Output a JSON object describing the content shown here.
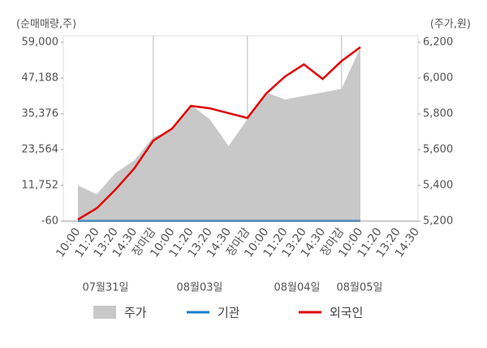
{
  "chart_data": {
    "type": "combo",
    "y_axis_title": "(순매매량,주)",
    "y2_axis_title": "(주가,원)",
    "categories": [
      "10:00",
      "11:20",
      "13:20",
      "14:30",
      "장마감",
      "10:00",
      "11:20",
      "13:20",
      "14:30",
      "장마감",
      "10:00",
      "11:20",
      "13:20",
      "14:30",
      "장마감",
      "10:00",
      "11:20",
      "13:20",
      "14:30"
    ],
    "category_colors": [
      "#555",
      "#555",
      "#555",
      "#555",
      "#e00000",
      "#555",
      "#555",
      "#555",
      "#555",
      "#e00000",
      "#555",
      "#555",
      "#555",
      "#555",
      "#e00000",
      "#555",
      "#555",
      "#555",
      "#555"
    ],
    "date_labels": [
      "07월31일",
      "08월03일",
      "08월04일",
      "08월05일"
    ],
    "series": [
      {
        "name": "주가",
        "type": "area",
        "axis": "y2",
        "color": "#c8c8c8",
        "values": [
          5400,
          5350,
          5470,
          5540,
          5670,
          5710,
          5850,
          5770,
          5620,
          5770,
          5920,
          5880,
          5900,
          5920,
          5940,
          6170,
          null,
          null,
          null
        ]
      },
      {
        "name": "기관",
        "type": "line",
        "color": "#1a7fd0",
        "values": [
          0,
          0,
          0,
          0,
          0,
          0,
          0,
          0,
          0,
          0,
          0,
          0,
          0,
          0,
          0,
          0,
          null,
          null,
          null
        ]
      },
      {
        "name": "외국인",
        "type": "line",
        "color": "#e00000",
        "values": [
          500,
          4200,
          10400,
          17400,
          26500,
          30500,
          38000,
          37200,
          35600,
          34000,
          42100,
          47700,
          51700,
          46900,
          52800,
          57400,
          null,
          null,
          null
        ]
      }
    ],
    "ylim": [
      -60,
      59000
    ],
    "yticks": [
      -60,
      {
        "value": 11752,
        "label": "11,752"
      },
      {
        "value": 23564,
        "label": "23,564"
      },
      {
        "value": 35376,
        "label": "35,376"
      },
      {
        "value": 47188,
        "label": "47,188"
      },
      {
        "value": 59000,
        "label": "59,000"
      }
    ],
    "y2lim": [
      5200,
      6200
    ],
    "y2ticks": [
      {
        "value": 5200,
        "label": "5,200"
      },
      {
        "value": 5400,
        "label": "5,400"
      },
      {
        "value": 5600,
        "label": "5,600"
      },
      {
        "value": 5800,
        "label": "5,800"
      },
      {
        "value": 6000,
        "label": "6,000"
      },
      {
        "value": 6200,
        "label": "6,200"
      }
    ]
  }
}
